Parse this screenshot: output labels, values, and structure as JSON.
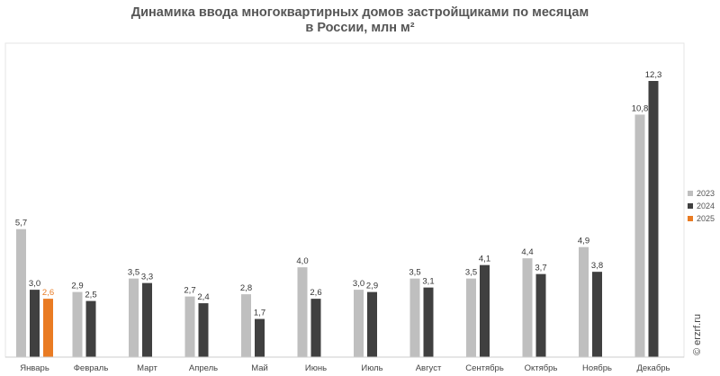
{
  "chart_data": {
    "type": "bar",
    "title": "Динамика ввода многоквартирных домов застройщиками по месяцам",
    "subtitle": "в России, млн м²",
    "xlabel": "",
    "ylabel": "",
    "ylim": [
      0,
      12.3
    ],
    "grid": false,
    "legend_position": "right",
    "categories": [
      "Январь",
      "Февраль",
      "Март",
      "Апрель",
      "Май",
      "Июнь",
      "Июль",
      "Август",
      "Сентябрь",
      "Октябрь",
      "Ноябрь",
      "Декабрь"
    ],
    "series": [
      {
        "name": "2023",
        "color": "#bfbfbf",
        "values": [
          5.7,
          2.9,
          3.5,
          2.7,
          2.8,
          4.0,
          3.0,
          3.5,
          3.5,
          4.4,
          4.9,
          10.8
        ],
        "labels": [
          "5,7",
          "2,9",
          "3,5",
          "2,7",
          "2,8",
          "4,0",
          "3,0",
          "3,5",
          "3,5",
          "4,4",
          "4,9",
          "10,8"
        ]
      },
      {
        "name": "2024",
        "color": "#404040",
        "values": [
          3.0,
          2.5,
          3.3,
          2.4,
          1.7,
          2.6,
          2.9,
          3.1,
          4.1,
          3.7,
          3.8,
          12.3
        ],
        "labels": [
          "3,0",
          "2,5",
          "3,3",
          "2,4",
          "1,7",
          "2,6",
          "2,9",
          "3,1",
          "4,1",
          "3,7",
          "3,8",
          "12,3"
        ]
      },
      {
        "name": "2025",
        "color": "#e97b23",
        "values": [
          2.6,
          null,
          null,
          null,
          null,
          null,
          null,
          null,
          null,
          null,
          null,
          null
        ],
        "labels": [
          "2,6",
          null,
          null,
          null,
          null,
          null,
          null,
          null,
          null,
          null,
          null,
          null
        ]
      }
    ]
  },
  "watermark": "© erzrf.ru"
}
